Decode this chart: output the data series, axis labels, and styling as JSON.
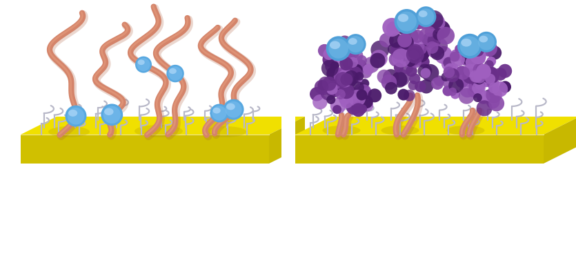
{
  "background_color": "#ffffff",
  "platform_yellow_top": "#f0e000",
  "platform_yellow_mid": "#e8d800",
  "platform_yellow_side": "#c8b800",
  "platform_yellow_front": "#d0c000",
  "aptamer_color": "#d4846a",
  "aptamer_color_dark": "#b06040",
  "aptamer_color_light": "#e8a080",
  "small_ball_color": "#58a8e0",
  "small_ball_mid": "#80c0f0",
  "small_ball_highlight": "#b0d8f8",
  "wire_color": "#b8b8c8",
  "wire_color_dark": "#808090",
  "wire_highlight": "#d8d8e8",
  "purple_dark": "#4a1a6a",
  "purple_mid": "#6a2f8a",
  "purple_light": "#8848a8",
  "purple_lighter": "#a060c0",
  "large_ball_color": "#50a0d8",
  "large_ball_mid": "#78bce8",
  "large_ball_highlight": "#b0d8f8",
  "shadow_dark": "#b09800",
  "fig_width": 8.35,
  "fig_height": 4.0,
  "dpi": 100
}
